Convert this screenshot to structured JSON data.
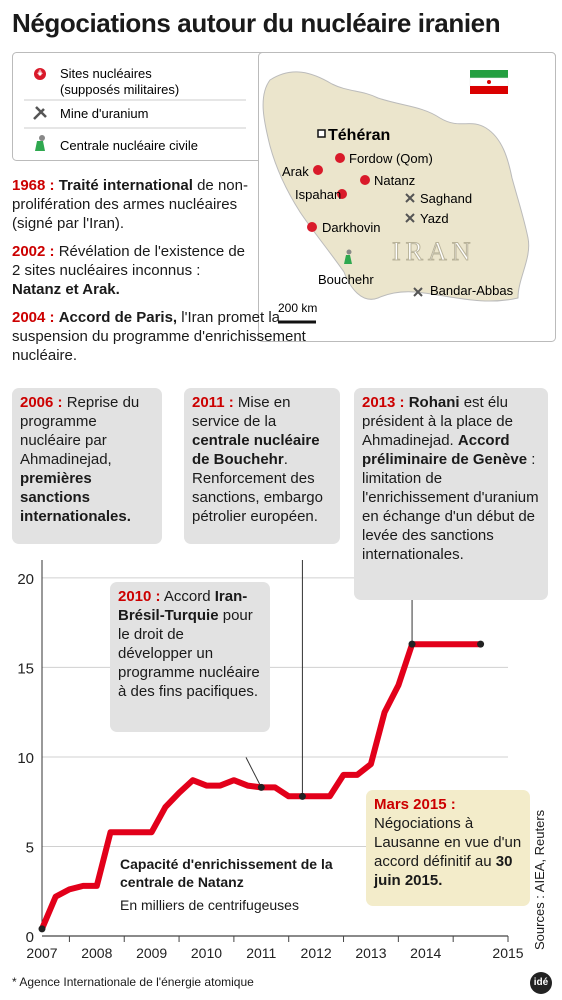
{
  "title": "Négociations autour du nucléaire iranien",
  "legend": {
    "sites_line1": "Sites nucléaires",
    "sites_line2": "(supposés militaires)",
    "mine": "Mine d'uranium",
    "plant": "Centrale nucléaire civile"
  },
  "map": {
    "capital": "Téhéran",
    "country": "IRAN",
    "scale": "200 km",
    "places": {
      "fordow": "Fordow (Qom)",
      "arak": "Arak",
      "natanz": "Natanz",
      "ispahan": "Ispahan",
      "saghand": "Saghand",
      "yazd": "Yazd",
      "darkhovin": "Darkhovin",
      "bouchehr": "Bouchehr",
      "bandar": "Bandar-Abbas"
    }
  },
  "timeline": {
    "e1968": {
      "year": "1968 :",
      "bold": "Traité international",
      "text": " de non-prolifération des armes nucléaires (signé par l'Iran)."
    },
    "e2002": {
      "year": "2002 :",
      "text": " Révélation de l'existence de 2 sites nucléaires inconnus :",
      "bold": "Natanz et Arak."
    },
    "e2004": {
      "year": "2004 :",
      "bold": "Accord de Paris,",
      "text": " l'Iran promet la suspension du programme d'enrichissement nucléaire."
    }
  },
  "callouts": {
    "c2006": {
      "year": "2006 :",
      "text": " Reprise du programme nucléaire par Ahmadinejad,",
      "bold": "premières sanctions internationales."
    },
    "c2011": {
      "year": "2011 :",
      "text1": " Mise en service de la ",
      "bold": "centrale nucléaire de Bouchehr",
      "text2": ". Renforcement des sanctions, embargo pétrolier européen."
    },
    "c2013": {
      "year": "2013 :",
      "bold1": " Rohani",
      "text1": " est élu président à la place de Ahmadinejad.",
      "bold2": "Accord préliminaire de Genève",
      "text2": " : limitation de l'enrichissement d'uranium en échange d'un début de levée des sanctions internationales."
    },
    "c2010": {
      "year": "2010 :",
      "text1": " Accord",
      "bold": "Iran-Brésil-Turquie",
      "text2": "pour le droit de développer un programme nucléaire à des fins pacifiques."
    },
    "c2015": {
      "year": "Mars 2015 :",
      "text": "Négociations à Lausanne en vue d'un accord définitif au ",
      "bold": "30 juin 2015."
    }
  },
  "chart_data": {
    "type": "line",
    "title": "Capacité d'enrichissement de la centrale de Natanz",
    "subtitle": "En milliers de centrifugeuses",
    "x": [
      2006.5,
      2006.75,
      2007.0,
      2007.25,
      2007.5,
      2007.75,
      2008.0,
      2008.25,
      2008.5,
      2008.75,
      2009.0,
      2009.25,
      2009.5,
      2009.75,
      2010.0,
      2010.25,
      2010.5,
      2010.75,
      2011.0,
      2011.25,
      2011.5,
      2011.75,
      2012.0,
      2012.25,
      2012.5,
      2012.75,
      2013.0,
      2013.25,
      2014.5
    ],
    "y": [
      0.4,
      2.2,
      2.6,
      2.8,
      2.8,
      5.8,
      5.8,
      5.8,
      5.8,
      7.2,
      8.0,
      8.7,
      8.4,
      8.4,
      8.7,
      8.4,
      8.3,
      8.3,
      7.8,
      7.8,
      7.8,
      7.8,
      9.0,
      9.0,
      9.6,
      12.5,
      14.0,
      16.3,
      16.3
    ],
    "series_color": "#e2001a",
    "yticks": [
      "0",
      "5",
      "10",
      "15",
      "20"
    ],
    "xticks": [
      "2007",
      "2008",
      "2009",
      "2010",
      "2011",
      "2012",
      "2013",
      "2014",
      "2015"
    ],
    "ylim": [
      0,
      21
    ],
    "xlim": [
      2006.5,
      2015
    ]
  },
  "sources": "Sources : AIEA, Reuters",
  "footnote": "* Agence Internationale de l'énergie atomique",
  "logo": "idé"
}
